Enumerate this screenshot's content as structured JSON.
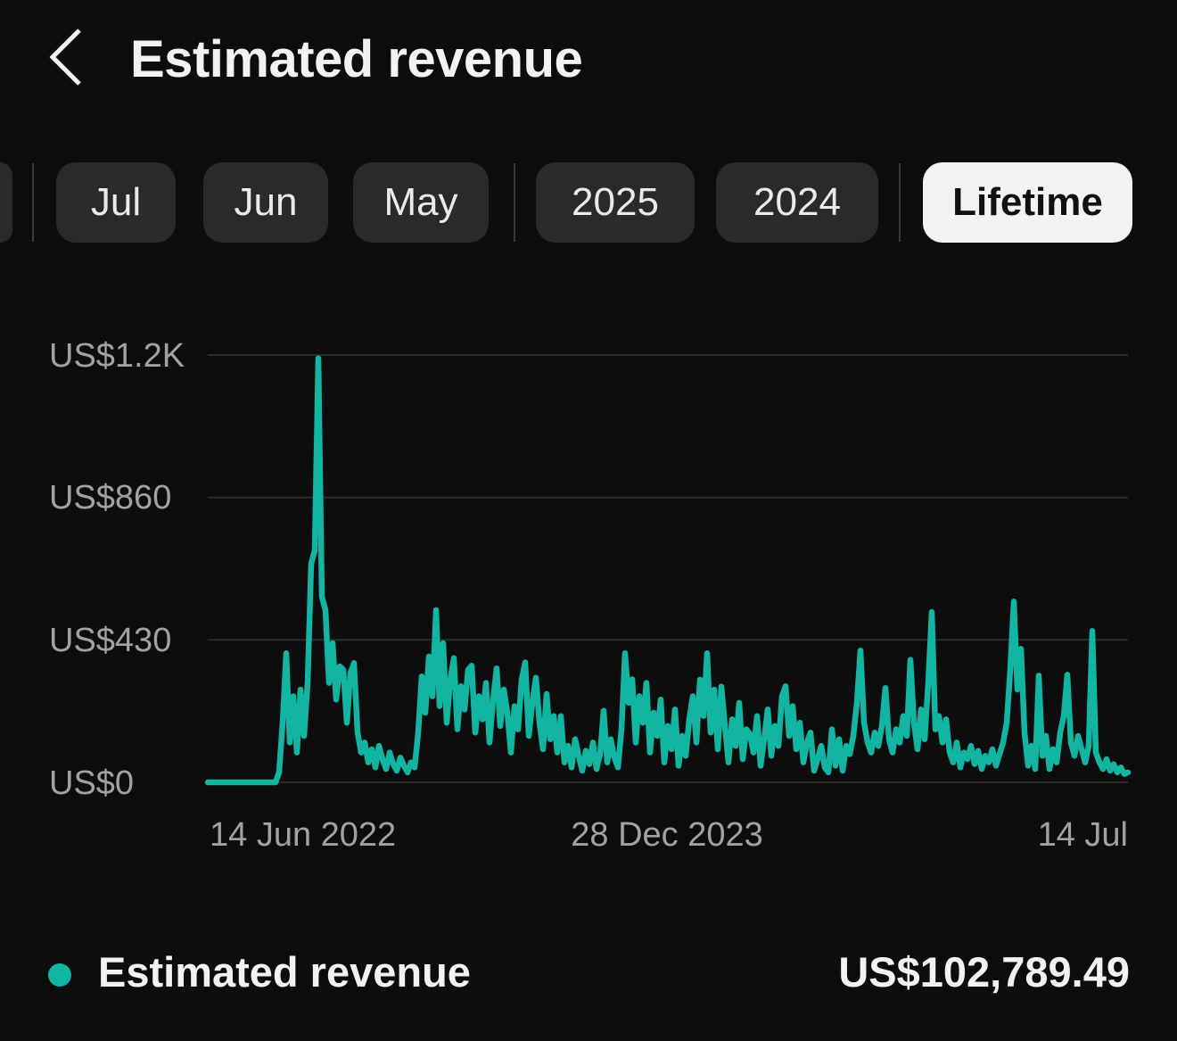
{
  "header": {
    "title": "Estimated revenue",
    "back_icon": "chevron-left"
  },
  "filters": {
    "months": [
      "Jul",
      "Jun",
      "May"
    ],
    "years": [
      "2025",
      "2024"
    ],
    "lifetime_label": "Lifetime",
    "selected": "Lifetime"
  },
  "chart_data": {
    "type": "line",
    "title": "Estimated revenue (Lifetime)",
    "series_name": "Estimated revenue",
    "color": "#12b5a2",
    "grid": true,
    "legend_position": "bottom",
    "ylim": [
      0,
      1290
    ],
    "y_ticks": [
      "US$1.2K",
      "US$860",
      "US$430",
      "US$0"
    ],
    "y_tick_values": [
      1290,
      860,
      430,
      0
    ],
    "x_ticks": [
      "14 Jun 2022",
      "28 Dec 2023",
      "14 Jul"
    ],
    "points": [
      0,
      0,
      0,
      0,
      0,
      0,
      0,
      0,
      0,
      0,
      0,
      0,
      0,
      0,
      0,
      0,
      0,
      0,
      0,
      0,
      30,
      180,
      390,
      120,
      260,
      90,
      280,
      140,
      300,
      660,
      700,
      1280,
      560,
      520,
      300,
      420,
      250,
      350,
      340,
      180,
      330,
      360,
      150,
      90,
      120,
      60,
      100,
      45,
      110,
      70,
      40,
      90,
      55,
      35,
      75,
      50,
      30,
      60,
      45,
      150,
      320,
      210,
      380,
      260,
      520,
      230,
      420,
      180,
      310,
      375,
      160,
      290,
      220,
      340,
      352,
      150,
      260,
      190,
      300,
      120,
      250,
      344,
      170,
      280,
      210,
      90,
      230,
      160,
      310,
      362,
      140,
      240,
      316,
      180,
      100,
      267,
      130,
      200,
      90,
      200,
      60,
      110,
      45,
      130,
      80,
      35,
      95,
      55,
      120,
      40,
      85,
      216,
      60,
      130,
      75,
      45,
      160,
      390,
      240,
      311,
      120,
      260,
      180,
      300,
      90,
      210,
      140,
      250,
      60,
      170,
      100,
      220,
      50,
      140,
      80,
      190,
      260,
      120,
      310,
      200,
      390,
      150,
      280,
      100,
      289,
      170,
      60,
      190,
      110,
      240,
      70,
      160,
      146,
      90,
      200,
      50,
      130,
      220,
      80,
      170,
      110,
      260,
      290,
      140,
      230,
      100,
      180,
      60,
      120,
      150,
      35,
      70,
      110,
      45,
      30,
      160,
      50,
      130,
      35,
      110,
      85,
      140,
      240,
      398,
      180,
      120,
      90,
      150,
      110,
      170,
      285,
      130,
      90,
      160,
      120,
      200,
      140,
      370,
      180,
      100,
      220,
      130,
      300,
      514,
      160,
      200,
      120,
      190,
      90,
      60,
      120,
      45,
      90,
      70,
      110,
      55,
      95,
      40,
      80,
      60,
      100,
      50,
      85,
      120,
      180,
      340,
      546,
      280,
      403,
      150,
      50,
      110,
      40,
      322,
      80,
      140,
      40,
      100,
      60,
      150,
      200,
      325,
      120,
      80,
      140,
      100,
      60,
      110,
      457,
      90,
      60,
      40,
      70,
      35,
      55,
      30,
      45,
      25,
      30
    ]
  },
  "legend": {
    "label": "Estimated revenue",
    "value": "US$102,789.49",
    "dot_color": "#12b5a2"
  }
}
